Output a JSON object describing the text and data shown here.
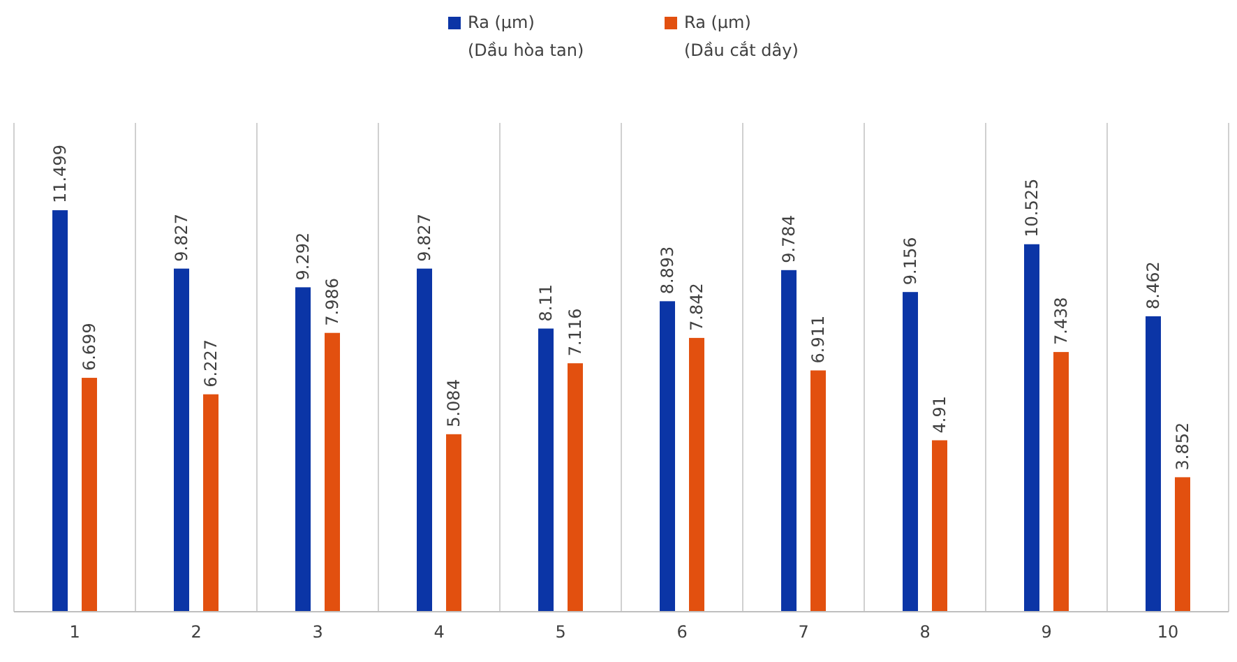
{
  "chart_data": {
    "type": "bar",
    "categories": [
      "1",
      "2",
      "3",
      "4",
      "5",
      "6",
      "7",
      "8",
      "9",
      "10"
    ],
    "series": [
      {
        "name": "Ra (µm)\n(Dầu hòa tan)",
        "color": "#0b35a6",
        "values": [
          11.499,
          9.827,
          9.292,
          9.827,
          8.11,
          8.893,
          9.784,
          9.156,
          10.525,
          8.462
        ]
      },
      {
        "name": "Ra (µm)\n(Dầu cắt dây)",
        "color": "#e2500f",
        "values": [
          6.699,
          6.227,
          7.986,
          5.084,
          7.116,
          7.842,
          6.911,
          4.91,
          7.438,
          3.852
        ]
      }
    ],
    "ylim": [
      0,
      14
    ],
    "data_labels": true,
    "grid": "x",
    "legend": "top",
    "tick_labels": "x"
  }
}
